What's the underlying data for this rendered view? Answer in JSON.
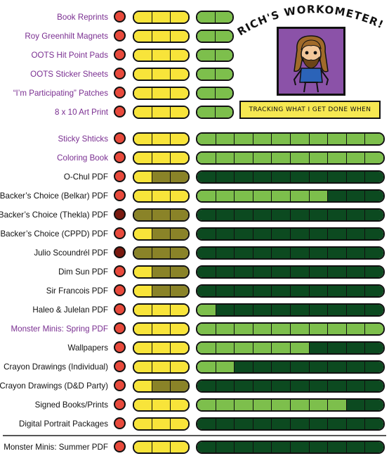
{
  "header": {
    "title": "RICH'S WORKOMETER!",
    "tagline": "TRACKING WHAT I GET DONE WHEN"
  },
  "colors": {
    "red": "#e84a3c",
    "dark_red": "#7a1a10",
    "yellow": "#f8e43a",
    "olive": "#8a8328",
    "light_green": "#7dbf4c",
    "dark_green": "#0c4a20",
    "purple_label": "#7a2f91"
  },
  "rows": [
    {
      "label": "Book Reprints",
      "purple": true,
      "dot": "red",
      "yellow": [
        1,
        1,
        1
      ],
      "green_total": 2,
      "green_done": 2
    },
    {
      "label": "Roy Greenhilt Magnets",
      "purple": true,
      "dot": "red",
      "yellow": [
        1,
        1,
        1
      ],
      "green_total": 2,
      "green_done": 2
    },
    {
      "label": "OOTS Hit Point Pads",
      "purple": true,
      "dot": "red",
      "yellow": [
        1,
        1,
        1
      ],
      "green_total": 2,
      "green_done": 2
    },
    {
      "label": "OOTS Sticker Sheets",
      "purple": true,
      "dot": "red",
      "yellow": [
        1,
        1,
        1
      ],
      "green_total": 2,
      "green_done": 2
    },
    {
      "label": "“I’m Participating” Patches",
      "purple": true,
      "dot": "red",
      "yellow": [
        1,
        1,
        1
      ],
      "green_total": 2,
      "green_done": 2
    },
    {
      "label": "8 x 10 Art Print",
      "purple": true,
      "dot": "red",
      "yellow": [
        1,
        1,
        1
      ],
      "green_total": 2,
      "green_done": 2
    },
    {
      "label": "Sticky Shticks",
      "purple": true,
      "dot": "red",
      "yellow": [
        1,
        1,
        1
      ],
      "green_total": 10,
      "green_done": 10
    },
    {
      "label": "Coloring Book",
      "purple": true,
      "dot": "red",
      "yellow": [
        1,
        1,
        1
      ],
      "green_total": 10,
      "green_done": 10
    },
    {
      "label": "O-Chul PDF",
      "purple": false,
      "dot": "red",
      "yellow": [
        1,
        0,
        0
      ],
      "green_total": 10,
      "green_done": 0
    },
    {
      "label": "Backer’s Choice (Belkar) PDF",
      "purple": false,
      "dot": "red",
      "yellow": [
        1,
        1,
        1
      ],
      "green_total": 10,
      "green_done": 7
    },
    {
      "label": "Backer’s Choice (Thekla) PDF",
      "purple": false,
      "dot": "dark_red",
      "yellow": [
        0,
        0,
        0
      ],
      "green_total": 10,
      "green_done": 0
    },
    {
      "label": "Backer’s Choice (CPPD) PDF",
      "purple": false,
      "dot": "red",
      "yellow": [
        1,
        0,
        0
      ],
      "green_total": 10,
      "green_done": 0
    },
    {
      "label": "Julio Scoundrél PDF",
      "purple": false,
      "dot": "dark_red",
      "yellow": [
        0,
        0,
        0
      ],
      "green_total": 10,
      "green_done": 0
    },
    {
      "label": "Dim Sun PDF",
      "purple": false,
      "dot": "red",
      "yellow": [
        1,
        0,
        0
      ],
      "green_total": 10,
      "green_done": 0
    },
    {
      "label": "Sir Francois  PDF",
      "purple": false,
      "dot": "red",
      "yellow": [
        1,
        0,
        0
      ],
      "green_total": 10,
      "green_done": 0
    },
    {
      "label": "Haleo & Julelan PDF",
      "purple": false,
      "dot": "red",
      "yellow": [
        1,
        1,
        1
      ],
      "green_total": 10,
      "green_done": 1
    },
    {
      "label": "Monster Minis: Spring PDF",
      "purple": true,
      "dot": "red",
      "yellow": [
        1,
        1,
        1
      ],
      "green_total": 10,
      "green_done": 10
    },
    {
      "label": "Wallpapers",
      "purple": false,
      "dot": "red",
      "yellow": [
        1,
        1,
        1
      ],
      "green_total": 10,
      "green_done": 6
    },
    {
      "label": "Crayon Drawings (Individual)",
      "purple": false,
      "dot": "red",
      "yellow": [
        1,
        1,
        1
      ],
      "green_total": 10,
      "green_done": 2
    },
    {
      "label": "Crayon Drawings (D&D Party)",
      "purple": false,
      "dot": "red",
      "yellow": [
        1,
        0,
        0
      ],
      "green_total": 10,
      "green_done": 0
    },
    {
      "label": "Signed Books/Prints",
      "purple": false,
      "dot": "red",
      "yellow": [
        1,
        1,
        1
      ],
      "green_total": 10,
      "green_done": 8
    },
    {
      "label": "Digital Portrait Packages",
      "purple": false,
      "dot": "red",
      "yellow": [
        1,
        1,
        1
      ],
      "green_total": 10,
      "green_done": 0
    },
    {
      "label": "Monster Minis: Summer PDF",
      "purple": false,
      "dot": "red",
      "yellow": [
        1,
        1,
        1
      ],
      "green_total": 10,
      "green_done": 0
    }
  ]
}
